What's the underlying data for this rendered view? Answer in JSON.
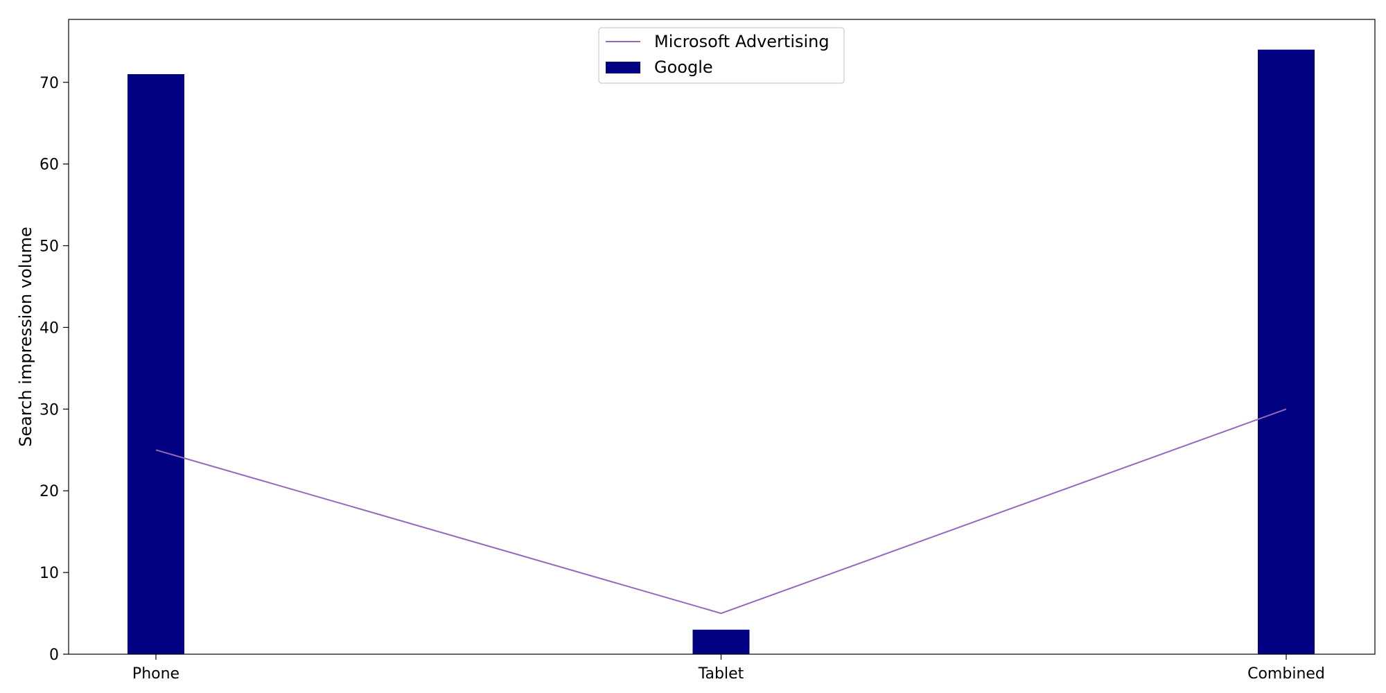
{
  "chart_data": {
    "type": "bar",
    "categories": [
      "Phone",
      "Tablet",
      "Combined"
    ],
    "series": [
      {
        "name": "Google",
        "type": "bar",
        "values": [
          71,
          3,
          74
        ],
        "color": "#000080"
      },
      {
        "name": "Microsoft Advertising",
        "type": "line",
        "values": [
          25,
          5,
          30
        ],
        "color": "#9467bd"
      }
    ],
    "xlabel": "",
    "ylabel": "Search impression volume",
    "ylim": [
      0,
      77.7
    ],
    "yticks": [
      0,
      10,
      20,
      30,
      40,
      50,
      60,
      70
    ],
    "grid": false,
    "legend": {
      "placement": "top-center",
      "entries": [
        {
          "label": "Microsoft Advertising",
          "kind": "line",
          "color": "#9467bd"
        },
        {
          "label": "Google",
          "kind": "bar",
          "color": "#000080"
        }
      ]
    }
  }
}
